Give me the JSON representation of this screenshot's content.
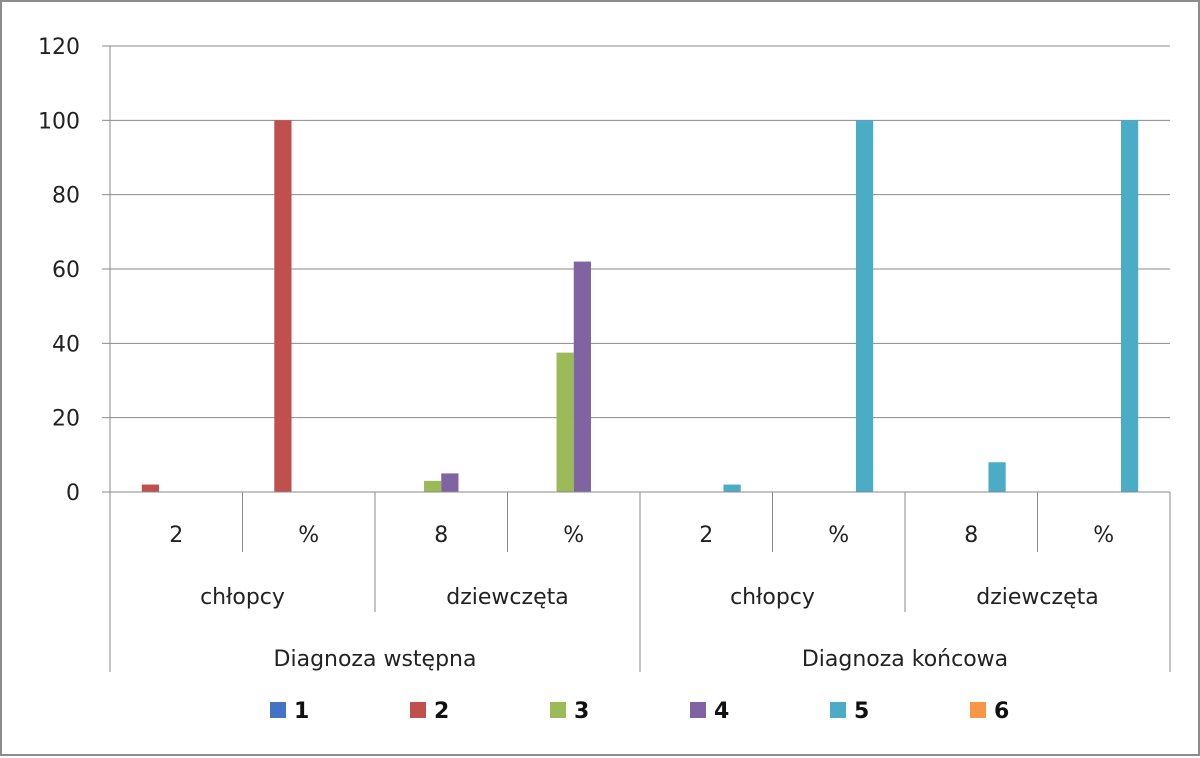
{
  "chart_data": {
    "type": "bar",
    "title": "",
    "xlabel": "",
    "ylabel": "",
    "ylim": [
      0,
      120
    ],
    "yticks": [
      0,
      20,
      40,
      60,
      80,
      100,
      120
    ],
    "grid": true,
    "legend_position": "bottom",
    "categories": [
      "2",
      "%",
      "8",
      "%",
      "2",
      "%",
      "8",
      "%"
    ],
    "category_groups_level2": [
      {
        "label": "chłopcy",
        "span": 2
      },
      {
        "label": "dziewczęta",
        "span": 2
      },
      {
        "label": "chłopcy",
        "span": 2
      },
      {
        "label": "dziewczęta",
        "span": 2
      }
    ],
    "category_groups_level3": [
      {
        "label": "Diagnoza wstępna",
        "span": 4
      },
      {
        "label": "Diagnoza końcowa",
        "span": 4
      }
    ],
    "series": [
      {
        "name": "1",
        "color": "#4472C4",
        "values": [
          0,
          0,
          0,
          0,
          0,
          0,
          0,
          0
        ]
      },
      {
        "name": "2",
        "color": "#C0504D",
        "values": [
          2,
          100,
          0,
          0,
          0,
          0,
          0,
          0
        ]
      },
      {
        "name": "3",
        "color": "#9BBB59",
        "values": [
          0,
          0,
          3,
          37.5,
          0,
          0,
          0,
          0
        ]
      },
      {
        "name": "4",
        "color": "#8064A2",
        "values": [
          0,
          0,
          5,
          62,
          0,
          0,
          0,
          0
        ]
      },
      {
        "name": "5",
        "color": "#4BACC6",
        "values": [
          0,
          0,
          0,
          0,
          2,
          100,
          8,
          100
        ]
      },
      {
        "name": "6",
        "color": "#F79646",
        "values": [
          0,
          0,
          0,
          0,
          0,
          0,
          0,
          0
        ]
      }
    ]
  }
}
